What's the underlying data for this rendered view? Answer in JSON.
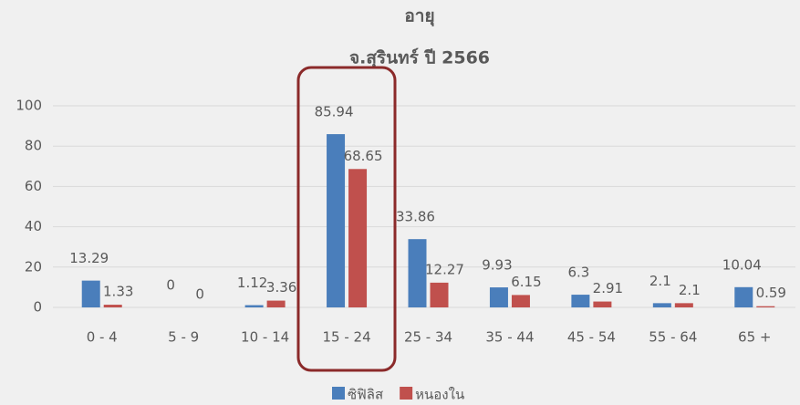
{
  "chart_data": {
    "type": "bar",
    "title": [
      "อายุ",
      "จ.สุรินทร์ ปี 2566"
    ],
    "categories": [
      "0 - 4",
      "5 - 9",
      "10 - 14",
      "15 - 24",
      "25 - 34",
      "35 - 44",
      "45 - 54",
      "55 - 64",
      "65 +"
    ],
    "series": [
      {
        "name": "ซิฟิลิส",
        "color": "#4a7ebb",
        "values": [
          13.29,
          0,
          1.12,
          85.94,
          33.86,
          9.93,
          6.3,
          2.1,
          10.04
        ]
      },
      {
        "name": "หนองใน",
        "color": "#c0504d",
        "values": [
          1.33,
          0,
          3.36,
          68.65,
          12.27,
          6.15,
          2.91,
          2.1,
          0.59
        ]
      }
    ],
    "ylim": [
      0,
      100
    ],
    "yticks": [
      0,
      20,
      40,
      60,
      80,
      100
    ],
    "grid": true,
    "legend": "bottom"
  }
}
